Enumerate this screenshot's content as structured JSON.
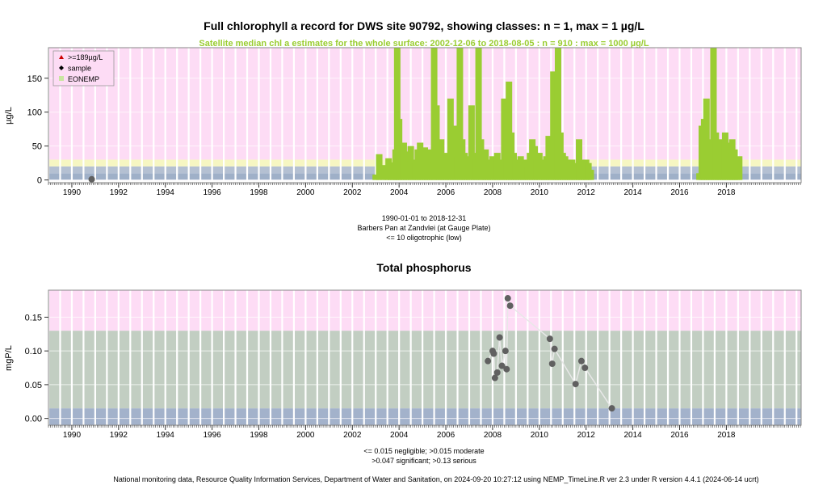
{
  "chart_data": [
    {
      "type": "area",
      "title": "Full chlorophyll a record for DWS site 90792, showing classes: n = 1, max = 1 µg/L",
      "subtitle": "Satellite median chl a estimates for the whole surface: 2002-12-06 to 2018-08-05 : n = 910 : max = 1000 µg/L",
      "ylabel": "µg/L",
      "xlabel": "",
      "xlim": [
        1989,
        2021.2
      ],
      "ylim": [
        -4,
        195
      ],
      "x_ticks": [
        "1990",
        "1992",
        "1994",
        "1996",
        "1998",
        "2000",
        "2002",
        "2004",
        "2006",
        "2008",
        "2010",
        "2012",
        "2014",
        "2016",
        "2018"
      ],
      "y_ticks": [
        "0",
        "50",
        "100",
        "150"
      ],
      "legend": {
        "placement": "top-left",
        "entries": [
          {
            "label": ">=189µg/L",
            "symbol": "triangle",
            "color": "#cc0000"
          },
          {
            "label": "sample",
            "symbol": "diamond",
            "color": "#000000"
          },
          {
            "label": "EONEMP",
            "symbol": "square",
            "color": "#c8e6a0"
          }
        ]
      },
      "class_bands": [
        {
          "from": 0,
          "to": 10,
          "color": "#9fb0c8"
        },
        {
          "from": 10,
          "to": 20,
          "color": "#b4c0d2"
        },
        {
          "from": 20,
          "to": 30,
          "color": "#f6f6c2"
        },
        {
          "from": 30,
          "to": 195,
          "color": "#fddcf5"
        }
      ],
      "series": [
        {
          "name": "sample",
          "color": "#606060",
          "points": [
            [
              1990.85,
              1
            ]
          ]
        },
        {
          "name": "EONEMP",
          "color": "#9acd32",
          "points": [
            [
              2003.0,
              8
            ],
            [
              2003.15,
              38
            ],
            [
              2003.3,
              22
            ],
            [
              2003.45,
              14
            ],
            [
              2003.55,
              32
            ],
            [
              2003.65,
              26
            ],
            [
              2003.75,
              10
            ],
            [
              2003.85,
              45
            ],
            [
              2003.92,
              195
            ],
            [
              2004.0,
              90
            ],
            [
              2004.1,
              35
            ],
            [
              2004.2,
              55
            ],
            [
              2004.3,
              42
            ],
            [
              2004.4,
              28
            ],
            [
              2004.5,
              50
            ],
            [
              2004.6,
              30
            ],
            [
              2004.7,
              25
            ],
            [
              2004.8,
              45
            ],
            [
              2004.9,
              55
            ],
            [
              2005.0,
              35
            ],
            [
              2005.1,
              48
            ],
            [
              2005.2,
              30
            ],
            [
              2005.3,
              45
            ],
            [
              2005.4,
              25
            ],
            [
              2005.5,
              195
            ],
            [
              2005.6,
              110
            ],
            [
              2005.7,
              45
            ],
            [
              2005.8,
              60
            ],
            [
              2005.9,
              35
            ],
            [
              2006.0,
              40
            ],
            [
              2006.1,
              30
            ],
            [
              2006.2,
              120
            ],
            [
              2006.3,
              50
            ],
            [
              2006.4,
              80
            ],
            [
              2006.5,
              35
            ],
            [
              2006.6,
              195
            ],
            [
              2006.7,
              60
            ],
            [
              2006.8,
              40
            ],
            [
              2006.9,
              35
            ],
            [
              2007.0,
              28
            ],
            [
              2007.1,
              110
            ],
            [
              2007.2,
              40
            ],
            [
              2007.3,
              30
            ],
            [
              2007.4,
              195
            ],
            [
              2007.5,
              60
            ],
            [
              2007.6,
              38
            ],
            [
              2007.7,
              45
            ],
            [
              2007.8,
              30
            ],
            [
              2007.9,
              25
            ],
            [
              2008.0,
              35
            ],
            [
              2008.1,
              28
            ],
            [
              2008.2,
              40
            ],
            [
              2008.3,
              30
            ],
            [
              2008.4,
              20
            ],
            [
              2008.5,
              120
            ],
            [
              2008.6,
              90
            ],
            [
              2008.7,
              145
            ],
            [
              2008.8,
              70
            ],
            [
              2008.9,
              40
            ],
            [
              2009.0,
              30
            ],
            [
              2009.1,
              25
            ],
            [
              2009.2,
              35
            ],
            [
              2009.3,
              25
            ],
            [
              2009.4,
              30
            ],
            [
              2009.5,
              20
            ],
            [
              2009.6,
              40
            ],
            [
              2009.7,
              60
            ],
            [
              2009.8,
              50
            ],
            [
              2009.9,
              30
            ],
            [
              2010.0,
              40
            ],
            [
              2010.1,
              25
            ],
            [
              2010.2,
              30
            ],
            [
              2010.3,
              35
            ],
            [
              2010.4,
              65
            ],
            [
              2010.5,
              20
            ],
            [
              2010.6,
              160
            ],
            [
              2010.7,
              50
            ],
            [
              2010.8,
              195
            ],
            [
              2010.9,
              70
            ],
            [
              2011.0,
              40
            ],
            [
              2011.1,
              35
            ],
            [
              2011.2,
              30
            ],
            [
              2011.3,
              25
            ],
            [
              2011.4,
              30
            ],
            [
              2011.5,
              20
            ],
            [
              2011.6,
              25
            ],
            [
              2011.7,
              60
            ],
            [
              2011.8,
              30
            ],
            [
              2011.9,
              20
            ],
            [
              2012.0,
              30
            ],
            [
              2012.1,
              25
            ],
            [
              2012.2,
              15
            ],
            [
              2016.85,
              10
            ],
            [
              2016.95,
              80
            ],
            [
              2017.05,
              90
            ],
            [
              2017.15,
              120
            ],
            [
              2017.25,
              60
            ],
            [
              2017.35,
              40
            ],
            [
              2017.45,
              195
            ],
            [
              2017.55,
              70
            ],
            [
              2017.65,
              50
            ],
            [
              2017.75,
              60
            ],
            [
              2017.85,
              45
            ],
            [
              2017.95,
              70
            ],
            [
              2018.05,
              55
            ],
            [
              2018.15,
              40
            ],
            [
              2018.25,
              60
            ],
            [
              2018.35,
              45
            ],
            [
              2018.45,
              30
            ],
            [
              2018.55,
              35
            ]
          ]
        }
      ],
      "footer_lines": [
        "1990-01-01 to 2018-12-31",
        "Barbers Pan at Zandvlei (at Gauge Plate)",
        "<= 10 oligotrophic (low)"
      ]
    },
    {
      "type": "scatter",
      "title": "Total phosphorus",
      "ylabel": "mgP/L",
      "xlabel": "",
      "xlim": [
        1989,
        2021.2
      ],
      "ylim": [
        -0.01,
        0.19
      ],
      "x_ticks": [
        "1990",
        "1992",
        "1994",
        "1996",
        "1998",
        "2000",
        "2002",
        "2004",
        "2006",
        "2008",
        "2010",
        "2012",
        "2014",
        "2016",
        "2018"
      ],
      "y_ticks": [
        "0.00",
        "0.05",
        "0.10",
        "0.15"
      ],
      "class_bands": [
        {
          "from": -0.01,
          "to": 0.015,
          "color": "#a3b2cb"
        },
        {
          "from": 0.015,
          "to": 0.13,
          "color": "#c2cec2"
        },
        {
          "from": 0.13,
          "to": 0.19,
          "color": "#fddcf5"
        }
      ],
      "series": [
        {
          "name": "",
          "color": "#606060",
          "points": [
            [
              2007.8,
              0.085
            ],
            [
              2008.0,
              0.1
            ],
            [
              2008.05,
              0.096
            ],
            [
              2008.1,
              0.06
            ],
            [
              2008.2,
              0.068
            ],
            [
              2008.3,
              0.12
            ],
            [
              2008.4,
              0.078
            ],
            [
              2008.55,
              0.1
            ],
            [
              2008.6,
              0.073
            ],
            [
              2008.65,
              0.178
            ],
            [
              2008.75,
              0.167
            ],
            [
              2010.45,
              0.118
            ],
            [
              2010.55,
              0.081
            ],
            [
              2010.65,
              0.103
            ],
            [
              2011.55,
              0.051
            ],
            [
              2011.8,
              0.085
            ],
            [
              2011.95,
              0.075
            ],
            [
              2013.1,
              0.015
            ]
          ]
        }
      ],
      "footer_lines": [
        "<= 0.015 negligible; >0.015 moderate",
        ">0.047 significant; >0.13 serious"
      ]
    }
  ],
  "footer": "National monitoring data, Resource Quality Information Services, Department of Water and Sanitation, on 2024-09-20 10:27:12 using NEMP_TimeLine.R ver 2.3 under R version 4.4.1 (2024-06-14 ucrt)"
}
